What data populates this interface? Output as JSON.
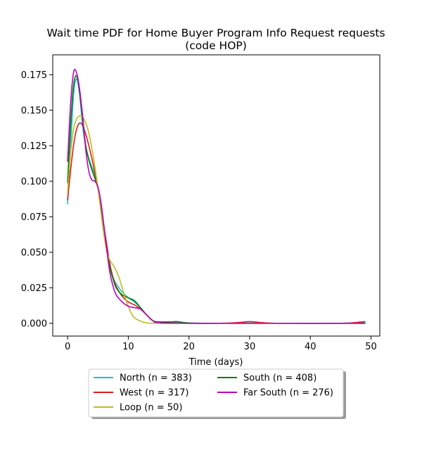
{
  "chart_data": {
    "type": "line",
    "title_line1": "Wait time PDF for Home Buyer Program Info Request  requests",
    "title_line2": "(code HOP)",
    "xlabel": "Time (days)",
    "ylabel": "",
    "xlim": [
      -2.45,
      51.45
    ],
    "ylim": [
      -0.009,
      0.189
    ],
    "xticks": [
      0,
      10,
      20,
      30,
      40,
      50
    ],
    "xtick_labels": [
      "0",
      "10",
      "20",
      "30",
      "40",
      "50"
    ],
    "yticks": [
      0.0,
      0.025,
      0.05,
      0.075,
      0.1,
      0.125,
      0.15,
      0.175
    ],
    "ytick_labels": [
      "0.000",
      "0.025",
      "0.050",
      "0.075",
      "0.100",
      "0.125",
      "0.150",
      "0.175"
    ],
    "grid": false,
    "legend_placement": "below plot, two columns",
    "series": [
      {
        "name": "North (n = 383)",
        "color": "#17becf",
        "points": [
          [
            0,
            0.084
          ],
          [
            0.5,
            0.125
          ],
          [
            1,
            0.162
          ],
          [
            1.5,
            0.172
          ],
          [
            2,
            0.16
          ],
          [
            2.5,
            0.138
          ],
          [
            3,
            0.124
          ],
          [
            3.5,
            0.116
          ],
          [
            4,
            0.11
          ],
          [
            4.5,
            0.104
          ],
          [
            5,
            0.095
          ],
          [
            5.5,
            0.082
          ],
          [
            6,
            0.065
          ],
          [
            6.5,
            0.05
          ],
          [
            7,
            0.039
          ],
          [
            7.5,
            0.032
          ],
          [
            8,
            0.028
          ],
          [
            9,
            0.022
          ],
          [
            10,
            0.018
          ],
          [
            11,
            0.015
          ],
          [
            12,
            0.011
          ],
          [
            13,
            0.006
          ],
          [
            14,
            0.002
          ],
          [
            15,
            0.001
          ],
          [
            17,
            0.001
          ],
          [
            18,
            0.0008
          ],
          [
            20,
            0.0002
          ],
          [
            25,
            0.0
          ],
          [
            30,
            0.0002
          ],
          [
            35,
            0.0
          ],
          [
            45,
            0.0
          ],
          [
            49,
            0.0005
          ]
        ]
      },
      {
        "name": "West (n = 317)",
        "color": "#e41a1c",
        "points": [
          [
            0,
            0.087
          ],
          [
            0.5,
            0.108
          ],
          [
            1,
            0.126
          ],
          [
            1.5,
            0.137
          ],
          [
            2,
            0.141
          ],
          [
            2.5,
            0.139
          ],
          [
            3,
            0.133
          ],
          [
            3.5,
            0.125
          ],
          [
            4,
            0.116
          ],
          [
            4.5,
            0.106
          ],
          [
            5,
            0.095
          ],
          [
            5.5,
            0.082
          ],
          [
            6,
            0.068
          ],
          [
            6.5,
            0.054
          ],
          [
            7,
            0.041
          ],
          [
            7.5,
            0.032
          ],
          [
            8,
            0.026
          ],
          [
            9,
            0.019
          ],
          [
            10,
            0.015
          ],
          [
            11,
            0.013
          ],
          [
            12,
            0.01
          ],
          [
            13,
            0.006
          ],
          [
            14,
            0.002
          ],
          [
            15,
            0.0005
          ],
          [
            20,
            0.0
          ],
          [
            25,
            0.0
          ],
          [
            28,
            0.0005
          ],
          [
            30,
            0.0012
          ],
          [
            32,
            0.0005
          ],
          [
            35,
            0.0
          ],
          [
            45,
            0.0
          ],
          [
            47,
            0.0004
          ],
          [
            49,
            0.0012
          ]
        ]
      },
      {
        "name": "South (n = 408)",
        "color": "#008000",
        "points": [
          [
            0,
            0.099
          ],
          [
            0.5,
            0.14
          ],
          [
            1,
            0.168
          ],
          [
            1.5,
            0.174
          ],
          [
            2,
            0.162
          ],
          [
            2.5,
            0.142
          ],
          [
            3,
            0.125
          ],
          [
            3.5,
            0.115
          ],
          [
            4,
            0.108
          ],
          [
            4.5,
            0.102
          ],
          [
            5,
            0.095
          ],
          [
            5.5,
            0.082
          ],
          [
            6,
            0.066
          ],
          [
            6.5,
            0.051
          ],
          [
            7,
            0.039
          ],
          [
            7.5,
            0.031
          ],
          [
            8,
            0.025
          ],
          [
            9,
            0.02
          ],
          [
            10,
            0.018
          ],
          [
            11,
            0.016
          ],
          [
            12,
            0.011
          ],
          [
            13,
            0.006
          ],
          [
            14,
            0.002
          ],
          [
            15,
            0.001
          ],
          [
            17,
            0.001
          ],
          [
            18,
            0.0012
          ],
          [
            20,
            0.0002
          ],
          [
            25,
            0.0
          ],
          [
            49,
            0.0
          ]
        ]
      },
      {
        "name": "Loop (n = 50)",
        "color": "#bcbd22",
        "points": [
          [
            0,
            0.092
          ],
          [
            0.5,
            0.12
          ],
          [
            1,
            0.137
          ],
          [
            1.5,
            0.144
          ],
          [
            2,
            0.146
          ],
          [
            2.5,
            0.145
          ],
          [
            3,
            0.141
          ],
          [
            3.5,
            0.134
          ],
          [
            4,
            0.123
          ],
          [
            4.5,
            0.11
          ],
          [
            5,
            0.095
          ],
          [
            5.5,
            0.078
          ],
          [
            6,
            0.062
          ],
          [
            6.5,
            0.05
          ],
          [
            7,
            0.044
          ],
          [
            7.5,
            0.041
          ],
          [
            8,
            0.037
          ],
          [
            8.5,
            0.032
          ],
          [
            9,
            0.025
          ],
          [
            9.5,
            0.018
          ],
          [
            10,
            0.012
          ],
          [
            10.5,
            0.007
          ],
          [
            11,
            0.004
          ],
          [
            12,
            0.0015
          ],
          [
            13,
            0.0003
          ],
          [
            14,
            0.0
          ],
          [
            20,
            0.0
          ],
          [
            49,
            0.0
          ]
        ]
      },
      {
        "name": "Far South (n = 276)",
        "color": "#bf00bf",
        "points": [
          [
            0,
            0.114
          ],
          [
            0.5,
            0.155
          ],
          [
            1,
            0.177
          ],
          [
            1.5,
            0.176
          ],
          [
            2,
            0.164
          ],
          [
            2.5,
            0.145
          ],
          [
            3,
            0.122
          ],
          [
            3.5,
            0.107
          ],
          [
            4,
            0.101
          ],
          [
            4.5,
            0.1
          ],
          [
            5,
            0.096
          ],
          [
            5.5,
            0.085
          ],
          [
            6,
            0.068
          ],
          [
            6.5,
            0.05
          ],
          [
            7,
            0.035
          ],
          [
            7.5,
            0.026
          ],
          [
            8,
            0.02
          ],
          [
            9,
            0.015
          ],
          [
            10,
            0.012
          ],
          [
            11,
            0.011
          ],
          [
            12,
            0.01
          ],
          [
            13,
            0.006
          ],
          [
            14,
            0.002
          ],
          [
            15,
            0.0005
          ],
          [
            20,
            0.0
          ],
          [
            49,
            0.0
          ]
        ]
      }
    ]
  }
}
